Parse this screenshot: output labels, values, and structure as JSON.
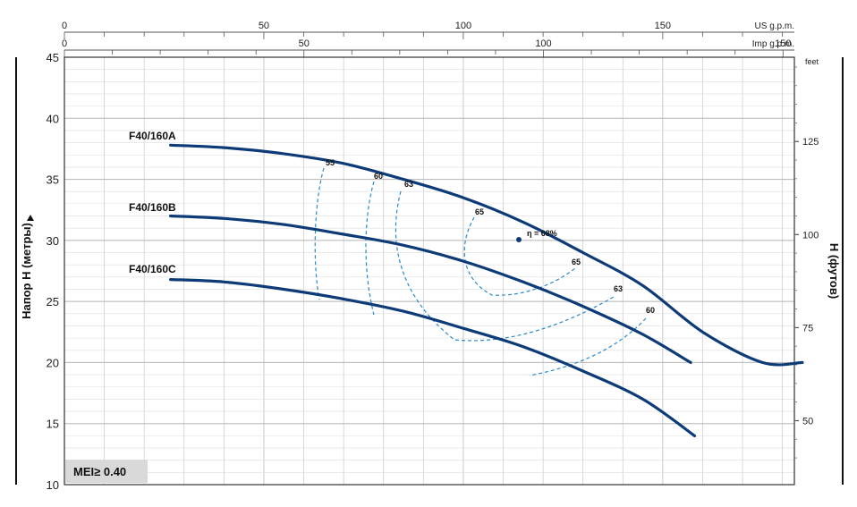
{
  "chart_data": {
    "type": "line",
    "title": "",
    "ylabel_left": "Напор H (метры)",
    "ylabel_right": "H (футов)",
    "units_us": "US g.p.m.",
    "units_imp": "Imp g.p.m.",
    "units_feet": "feet",
    "mei_label": "MEI≥ 0.40",
    "ylim": [
      10,
      45
    ],
    "yticks": [
      "10",
      "15",
      "20",
      "25",
      "30",
      "35",
      "40",
      "45"
    ],
    "feet_ticks": [
      "50",
      "75",
      "100",
      "125"
    ],
    "us_ticks": [
      "0",
      "50",
      "100",
      "150"
    ],
    "imp_ticks": [
      "0",
      "50",
      "100",
      "150"
    ],
    "us_range": [
      0,
      183
    ],
    "grid": true,
    "series": [
      {
        "name": "F40/160A",
        "x": [
          26.6,
          40,
          55,
          70,
          85,
          100,
          115,
          130,
          145,
          160,
          175,
          185
        ],
        "y": [
          37.8,
          37.6,
          37.1,
          36.3,
          35.0,
          33.5,
          31.5,
          29.0,
          26.3,
          22.5,
          20.0,
          20.0
        ]
      },
      {
        "name": "F40/160B",
        "x": [
          26.6,
          40,
          55,
          70,
          85,
          100,
          115,
          130,
          145,
          157
        ],
        "y": [
          32.0,
          31.8,
          31.3,
          30.5,
          29.6,
          28.3,
          26.6,
          24.6,
          22.3,
          20.0
        ]
      },
      {
        "name": "F40/160C",
        "x": [
          26.6,
          40,
          55,
          70,
          85,
          100,
          115,
          130,
          145,
          158
        ],
        "y": [
          26.8,
          26.6,
          26.0,
          25.2,
          24.2,
          22.8,
          21.3,
          19.3,
          17.0,
          14.0
        ]
      }
    ],
    "efficiency_labels": [
      "55",
      "60",
      "63",
      "65",
      "η = 68%",
      "65",
      "63",
      "60"
    ]
  }
}
